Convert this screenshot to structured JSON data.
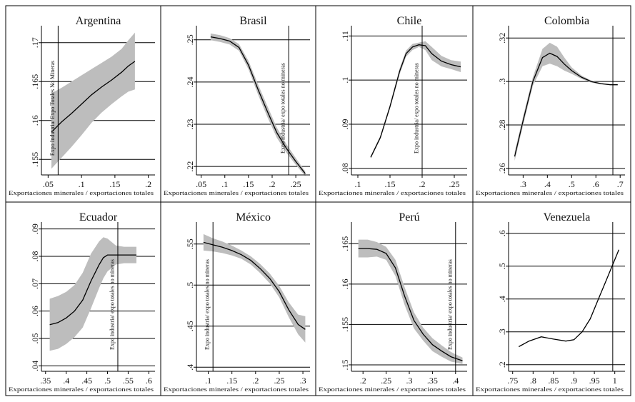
{
  "chart_data": [
    {
      "type": "line",
      "title": "Argentina",
      "xlabel": "Exportaciones minerales / exportaciones totales",
      "ylabel": "Expo Industria/ Expo Totales No Mineras",
      "xlim": [
        0.04,
        0.21
      ],
      "ylim": [
        0.153,
        0.172
      ],
      "xticks": [
        0.05,
        0.1,
        0.15,
        0.2
      ],
      "xtick_labels": [
        ".05",
        ".1",
        ".15",
        ".2"
      ],
      "yticks": [
        0.155,
        0.16,
        0.165,
        0.17
      ],
      "ytick_labels": [
        ".155",
        ".16",
        ".165",
        ".17"
      ],
      "vline": 0.065,
      "series": [
        {
          "x": [
            0.055,
            0.07,
            0.085,
            0.1,
            0.115,
            0.13,
            0.145,
            0.16,
            0.17,
            0.18
          ],
          "y": [
            0.1585,
            0.1598,
            0.1609,
            0.1621,
            0.1633,
            0.1643,
            0.1652,
            0.1662,
            0.167,
            0.1676
          ],
          "upper": [
            0.1635,
            0.1642,
            0.165,
            0.1658,
            0.1666,
            0.1674,
            0.1682,
            0.1692,
            0.1703,
            0.1713
          ],
          "lower": [
            0.1538,
            0.1552,
            0.1566,
            0.1581,
            0.1597,
            0.161,
            0.1621,
            0.1631,
            0.1637,
            0.164
          ]
        }
      ]
    },
    {
      "type": "line",
      "title": "Brasil",
      "xlabel": "Exportaciones minerales / exportaciones totales",
      "ylabel": "Expo industria/ expo totales no mineras",
      "xlim": [
        0.04,
        0.28
      ],
      "ylim": [
        0.218,
        0.253
      ],
      "xticks": [
        0.05,
        0.1,
        0.15,
        0.2,
        0.25
      ],
      "xtick_labels": [
        ".05",
        ".1",
        ".15",
        ".2",
        ".25"
      ],
      "yticks": [
        0.22,
        0.23,
        0.24,
        0.25
      ],
      "ytick_labels": [
        ".22",
        ".23",
        ".24",
        ".25"
      ],
      "vline": 0.235,
      "series": [
        {
          "x": [
            0.07,
            0.09,
            0.11,
            0.13,
            0.15,
            0.17,
            0.19,
            0.21,
            0.23,
            0.25,
            0.27
          ],
          "y": [
            0.2507,
            0.2503,
            0.2497,
            0.2482,
            0.244,
            0.2383,
            0.233,
            0.228,
            0.2243,
            0.2212,
            0.2183
          ],
          "upper": [
            0.2515,
            0.2511,
            0.2504,
            0.249,
            0.245,
            0.2395,
            0.2343,
            0.2292,
            0.2253,
            0.222,
            0.2188
          ],
          "lower": [
            0.2499,
            0.2495,
            0.2489,
            0.2474,
            0.243,
            0.2371,
            0.2317,
            0.2268,
            0.2233,
            0.2204,
            0.2177
          ]
        }
      ]
    },
    {
      "type": "line",
      "title": "Chile",
      "xlabel": "Exportaciones minerales / exportaciones totales",
      "ylabel": "Expo industria/ expo totales no mineras",
      "xlim": [
        0.09,
        0.27
      ],
      "ylim": [
        0.0785,
        0.112
      ],
      "xticks": [
        0.1,
        0.15,
        0.2,
        0.25
      ],
      "xtick_labels": [
        ".1",
        ".15",
        ".2",
        ".25"
      ],
      "yticks": [
        0.08,
        0.09,
        0.1,
        0.11
      ],
      "ytick_labels": [
        ".08",
        ".09",
        ".1",
        ".11"
      ],
      "vline": 0.2,
      "series": [
        {
          "x": [
            0.12,
            0.135,
            0.15,
            0.165,
            0.175,
            0.185,
            0.195,
            0.205,
            0.215,
            0.23,
            0.245,
            0.26
          ],
          "y": [
            0.0825,
            0.087,
            0.094,
            0.102,
            0.106,
            0.1075,
            0.108,
            0.1078,
            0.106,
            0.1043,
            0.1035,
            0.103
          ],
          "upper": [
            0.0828,
            0.0874,
            0.0945,
            0.1027,
            0.1067,
            0.1082,
            0.1085,
            0.1088,
            0.1075,
            0.1055,
            0.1045,
            0.1042
          ],
          "lower": [
            0.0822,
            0.0866,
            0.0935,
            0.1013,
            0.1053,
            0.1068,
            0.1075,
            0.1068,
            0.1045,
            0.1031,
            0.1025,
            0.1018
          ]
        }
      ]
    },
    {
      "type": "line",
      "title": "Colombia",
      "xlabel": "Exportaciones minerales / exportaciones totales",
      "ylabel": "",
      "xlim": [
        0.24,
        0.72
      ],
      "ylim": [
        0.257,
        0.325
      ],
      "xticks": [
        0.3,
        0.4,
        0.5,
        0.6,
        0.7
      ],
      "xtick_labels": [
        ".3",
        ".4",
        ".5",
        ".6",
        ".7"
      ],
      "yticks": [
        0.26,
        0.28,
        0.3,
        0.32
      ],
      "ytick_labels": [
        ".26",
        ".28",
        ".3",
        ".32"
      ],
      "vline": 0.67,
      "series": [
        {
          "x": [
            0.265,
            0.3,
            0.34,
            0.38,
            0.41,
            0.44,
            0.47,
            0.5,
            0.54,
            0.58,
            0.62,
            0.66,
            0.69
          ],
          "y": [
            0.2655,
            0.282,
            0.3,
            0.311,
            0.313,
            0.3115,
            0.308,
            0.305,
            0.302,
            0.3,
            0.299,
            0.2985,
            0.2985
          ],
          "upper": [
            0.2675,
            0.284,
            0.302,
            0.315,
            0.3178,
            0.316,
            0.311,
            0.3065,
            0.3028,
            0.3005,
            0.2993,
            0.2987,
            0.2987
          ],
          "lower": [
            0.2635,
            0.28,
            0.298,
            0.307,
            0.3082,
            0.307,
            0.305,
            0.3035,
            0.3012,
            0.2995,
            0.2987,
            0.2983,
            0.2983
          ]
        }
      ]
    },
    {
      "type": "line",
      "title": "Ecuador",
      "xlabel": "Exportaciones minerales / exportaciones totales",
      "ylabel": "Expo industria/ expo totales no mineras",
      "xlim": [
        0.34,
        0.615
      ],
      "ylim": [
        0.038,
        0.092
      ],
      "xticks": [
        0.35,
        0.4,
        0.45,
        0.5,
        0.55,
        0.6
      ],
      "xtick_labels": [
        ".35",
        ".4",
        ".45",
        ".5",
        ".55",
        ".6"
      ],
      "yticks": [
        0.04,
        0.05,
        0.06,
        0.07,
        0.08,
        0.09
      ],
      "ytick_labels": [
        ".04",
        ".05",
        ".06",
        ".07",
        ".08",
        ".09"
      ],
      "vline": 0.525,
      "series": [
        {
          "x": [
            0.36,
            0.38,
            0.4,
            0.42,
            0.44,
            0.46,
            0.48,
            0.49,
            0.5,
            0.52,
            0.54,
            0.57
          ],
          "y": [
            0.055,
            0.0558,
            0.0575,
            0.06,
            0.064,
            0.071,
            0.077,
            0.0795,
            0.0805,
            0.0805,
            0.0805,
            0.0805
          ],
          "upper": [
            0.0645,
            0.0655,
            0.067,
            0.0695,
            0.074,
            0.081,
            0.0855,
            0.087,
            0.0865,
            0.084,
            0.0835,
            0.0835
          ],
          "lower": [
            0.0455,
            0.0462,
            0.048,
            0.0505,
            0.054,
            0.061,
            0.0685,
            0.072,
            0.0745,
            0.077,
            0.0775,
            0.0775
          ]
        }
      ]
    },
    {
      "type": "line",
      "title": "México",
      "xlabel": "Exportaciones minerales / exportaciones totales",
      "ylabel": "Expo industria/ expo totales no mineras",
      "xlim": [
        0.075,
        0.315
      ],
      "ylim": [
        0.395,
        0.575
      ],
      "xticks": [
        0.1,
        0.15,
        0.2,
        0.25,
        0.3
      ],
      "xtick_labels": [
        ".1",
        ".15",
        ".2",
        ".25",
        ".3"
      ],
      "yticks": [
        0.4,
        0.45,
        0.5,
        0.55
      ],
      "ytick_labels": [
        ".4",
        ".45",
        ".5",
        ".55"
      ],
      "vline": 0.11,
      "series": [
        {
          "x": [
            0.09,
            0.11,
            0.13,
            0.15,
            0.17,
            0.19,
            0.21,
            0.23,
            0.25,
            0.27,
            0.29,
            0.305
          ],
          "y": [
            0.552,
            0.549,
            0.546,
            0.542,
            0.537,
            0.53,
            0.52,
            0.508,
            0.492,
            0.47,
            0.452,
            0.446
          ],
          "upper": [
            0.562,
            0.557,
            0.553,
            0.548,
            0.542,
            0.535,
            0.5255,
            0.514,
            0.499,
            0.479,
            0.464,
            0.462
          ],
          "lower": [
            0.542,
            0.541,
            0.539,
            0.536,
            0.532,
            0.525,
            0.5145,
            0.502,
            0.485,
            0.461,
            0.44,
            0.43
          ]
        }
      ]
    },
    {
      "type": "line",
      "title": "Perú",
      "xlabel": "Exportaciones minerales / exportaciones totales",
      "ylabel": "Expo industria/ expo totales no mineras",
      "xlim": [
        0.175,
        0.425
      ],
      "ylim": [
        0.1492,
        0.1675
      ],
      "xticks": [
        0.2,
        0.25,
        0.3,
        0.35,
        0.4
      ],
      "xtick_labels": [
        ".2",
        ".25",
        ".3",
        ".35",
        ".4"
      ],
      "yticks": [
        0.15,
        0.155,
        0.16,
        0.165
      ],
      "ytick_labels": [
        ".15",
        ".155",
        ".16",
        ".165"
      ],
      "vline": 0.4,
      "series": [
        {
          "x": [
            0.19,
            0.21,
            0.23,
            0.25,
            0.27,
            0.29,
            0.31,
            0.33,
            0.35,
            0.37,
            0.39,
            0.415
          ],
          "y": [
            0.1644,
            0.1644,
            0.1643,
            0.1638,
            0.162,
            0.1585,
            0.1555,
            0.1538,
            0.1525,
            0.1517,
            0.151,
            0.1505
          ],
          "upper": [
            0.1655,
            0.1655,
            0.1652,
            0.1646,
            0.163,
            0.1596,
            0.1565,
            0.1546,
            0.1533,
            0.1524,
            0.1516,
            0.1509
          ],
          "lower": [
            0.1633,
            0.1633,
            0.1634,
            0.163,
            0.161,
            0.1574,
            0.1545,
            0.153,
            0.1517,
            0.151,
            0.1504,
            0.1501
          ]
        }
      ]
    },
    {
      "type": "line",
      "title": "Venezuela",
      "xlabel": "Exportaciones minerales / exportaciones totales",
      "ylabel": "",
      "xlim": [
        0.74,
        1.025
      ],
      "ylim": [
        0.18,
        0.63
      ],
      "xticks": [
        0.75,
        0.8,
        0.85,
        0.9,
        0.95,
        1.0
      ],
      "xtick_labels": [
        ".75",
        ".8",
        ".85",
        ".9",
        ".95",
        "1"
      ],
      "yticks": [
        0.2,
        0.3,
        0.4,
        0.5,
        0.6
      ],
      "ytick_labels": [
        ".2",
        ".3",
        ".4",
        ".5",
        ".6"
      ],
      "vline": 0.995,
      "series": [
        {
          "x": [
            0.765,
            0.79,
            0.82,
            0.85,
            0.88,
            0.9,
            0.92,
            0.94,
            0.96,
            0.98,
            1.0,
            1.01
          ],
          "y": [
            0.255,
            0.272,
            0.285,
            0.278,
            0.272,
            0.276,
            0.3,
            0.34,
            0.4,
            0.46,
            0.52,
            0.55
          ]
        }
      ]
    }
  ]
}
